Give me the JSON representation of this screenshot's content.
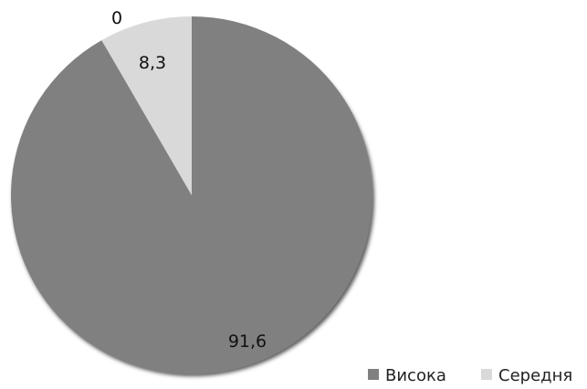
{
  "chart_data": {
    "type": "pie",
    "categories": [
      "Висока",
      "Середня",
      ""
    ],
    "values": [
      91.6,
      8.3,
      0
    ],
    "value_labels": [
      "91,6",
      "8,3",
      "0"
    ],
    "colors": [
      "#808080",
      "#d9d9d9",
      "#ffffff"
    ],
    "legend": {
      "placement": "bottom-right",
      "entries": [
        {
          "label": "Висока",
          "color": "#808080"
        },
        {
          "label": "Середня",
          "color": "#d9d9d9"
        }
      ]
    },
    "start_angle_deg": 0,
    "direction": "clockwise"
  }
}
